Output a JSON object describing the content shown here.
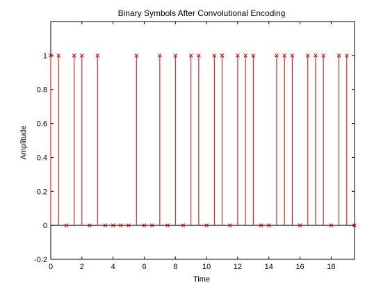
{
  "chart_data": {
    "type": "stem",
    "title": "Binary Symbols After Convolutional Encoding",
    "xlabel": "Time",
    "ylabel": "Amplitude",
    "xlim": [
      0,
      19.5
    ],
    "ylim": [
      -0.2,
      1.2
    ],
    "xticks": [
      "0",
      "2",
      "4",
      "6",
      "8",
      "10",
      "12",
      "14",
      "16",
      "18"
    ],
    "xtick_values": [
      0,
      2,
      4,
      6,
      8,
      10,
      12,
      14,
      16,
      18
    ],
    "yticks": [
      "-0.2",
      "0",
      "0.2",
      "0.4",
      "0.6",
      "0.8",
      "1"
    ],
    "ytick_values": [
      -0.2,
      0,
      0.2,
      0.4,
      0.6,
      0.8,
      1
    ],
    "grid": false,
    "marker": "x",
    "series": [
      {
        "color": "#cc0000",
        "x": [
          0,
          0.5,
          1,
          1.5,
          2,
          2.5,
          3,
          3.5,
          4,
          4.5,
          5,
          5.5,
          6,
          6.5,
          7,
          7.5,
          8,
          8.5,
          9,
          9.5,
          10,
          10.5,
          11,
          11.5,
          12,
          12.5,
          13,
          13.5,
          14,
          14.5,
          15,
          15.5,
          16,
          16.5,
          17,
          17.5,
          18,
          18.5,
          19,
          19.5
        ],
        "values": [
          1,
          1,
          0,
          1,
          1,
          0,
          1,
          0,
          0,
          0,
          0,
          1,
          0,
          0,
          1,
          0,
          1,
          0,
          1,
          1,
          0,
          1,
          1,
          0,
          1,
          1,
          1,
          0,
          0,
          1,
          1,
          1,
          0,
          1,
          1,
          1,
          0,
          1,
          1,
          0
        ]
      }
    ],
    "baseline_color": "#000000"
  }
}
